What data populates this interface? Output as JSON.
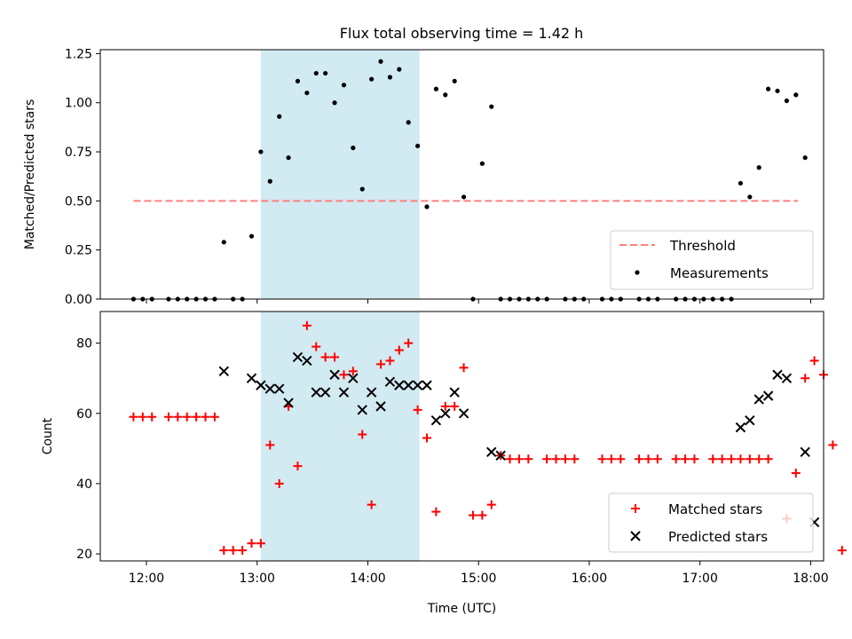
{
  "figure": {
    "title": "Flux total observing time = 1.42 h"
  },
  "chart_data": [
    {
      "type": "scatter",
      "panel": "top",
      "title": "Flux total observing time = 1.42 h",
      "xlabel": "",
      "ylabel": "Matched/Predicted stars",
      "xlim": [
        "11:35",
        "18:07"
      ],
      "ylim": [
        0,
        1.27
      ],
      "yticks": [
        0.0,
        0.25,
        0.5,
        0.75,
        1.0,
        1.25
      ],
      "ytick_labels": [
        "0.00",
        "0.25",
        "0.50",
        "0.75",
        "1.00",
        "1.25"
      ],
      "xticks": [
        "12:00",
        "13:00",
        "14:00",
        "15:00",
        "16:00",
        "17:00",
        "18:00"
      ],
      "grid": false,
      "legend_position": "lower right",
      "shaded_region": {
        "x": [
          "13:02",
          "14:28"
        ],
        "color": "#add8e6"
      },
      "threshold": {
        "name": "Threshold",
        "value": 0.5,
        "x": [
          "11:53",
          "17:53"
        ],
        "color": "#ff7f7f",
        "style": "dashed"
      },
      "series": [
        {
          "name": "Measurements",
          "marker": "dot",
          "color": "#000000",
          "points": [
            [
              "11:53",
              0
            ],
            [
              "11:58",
              0
            ],
            [
              "12:03",
              0
            ],
            [
              "12:12",
              0
            ],
            [
              "12:17",
              0
            ],
            [
              "12:22",
              0
            ],
            [
              "12:27",
              0
            ],
            [
              "12:32",
              0
            ],
            [
              "12:37",
              0
            ],
            [
              "12:42",
              0.29
            ],
            [
              "12:47",
              0
            ],
            [
              "12:52",
              0
            ],
            [
              "12:57",
              0.32
            ],
            [
              "13:02",
              0.75
            ],
            [
              "13:07",
              0.6
            ],
            [
              "13:12",
              0.93
            ],
            [
              "13:17",
              0.72
            ],
            [
              "13:22",
              1.11
            ],
            [
              "13:27",
              1.05
            ],
            [
              "13:32",
              1.15
            ],
            [
              "13:37",
              1.15
            ],
            [
              "13:42",
              1.0
            ],
            [
              "13:47",
              1.09
            ],
            [
              "13:52",
              0.77
            ],
            [
              "13:57",
              0.56
            ],
            [
              "14:02",
              1.12
            ],
            [
              "14:07",
              1.21
            ],
            [
              "14:12",
              1.13
            ],
            [
              "14:17",
              1.17
            ],
            [
              "14:22",
              0.9
            ],
            [
              "14:27",
              0.78
            ],
            [
              "14:32",
              0.47
            ],
            [
              "14:37",
              1.07
            ],
            [
              "14:42",
              1.04
            ],
            [
              "14:47",
              1.11
            ],
            [
              "14:52",
              0.52
            ],
            [
              "14:57",
              0
            ],
            [
              "15:02",
              0.69
            ],
            [
              "15:07",
              0.98
            ],
            [
              "15:12",
              0
            ],
            [
              "15:17",
              0
            ],
            [
              "15:22",
              0
            ],
            [
              "15:27",
              0
            ],
            [
              "15:32",
              0
            ],
            [
              "15:37",
              0
            ],
            [
              "15:47",
              0
            ],
            [
              "15:52",
              0
            ],
            [
              "15:57",
              0
            ],
            [
              "16:07",
              0
            ],
            [
              "16:12",
              0
            ],
            [
              "16:17",
              0
            ],
            [
              "16:27",
              0
            ],
            [
              "16:32",
              0
            ],
            [
              "16:37",
              0
            ],
            [
              "16:47",
              0
            ],
            [
              "16:52",
              0
            ],
            [
              "16:57",
              0
            ],
            [
              "17:02",
              0
            ],
            [
              "17:07",
              0
            ],
            [
              "17:12",
              0
            ],
            [
              "17:17",
              0
            ],
            [
              "17:22",
              0.59
            ],
            [
              "17:27",
              0.52
            ],
            [
              "17:32",
              0.67
            ],
            [
              "17:37",
              1.07
            ],
            [
              "17:42",
              1.06
            ],
            [
              "17:47",
              1.01
            ],
            [
              "17:52",
              1.04
            ],
            [
              "17:57",
              0.72
            ]
          ]
        }
      ]
    },
    {
      "type": "scatter",
      "panel": "bottom",
      "xlabel": "Time (UTC)",
      "ylabel": "Count",
      "xlim": [
        "11:35",
        "18:07"
      ],
      "ylim": [
        18,
        89
      ],
      "yticks": [
        20,
        40,
        60,
        80
      ],
      "ytick_labels": [
        "20",
        "40",
        "60",
        "80"
      ],
      "xticks": [
        "12:00",
        "13:00",
        "14:00",
        "15:00",
        "16:00",
        "17:00",
        "18:00"
      ],
      "xtick_labels": [
        "12:00",
        "13:00",
        "14:00",
        "15:00",
        "16:00",
        "17:00",
        "18:00"
      ],
      "grid": false,
      "legend_position": "lower right",
      "shaded_region": {
        "x": [
          "13:02",
          "14:28"
        ],
        "color": "#add8e6"
      },
      "series": [
        {
          "name": "Matched stars",
          "marker": "plus",
          "color": "#ff0000",
          "points": [
            [
              "11:53",
              59
            ],
            [
              "11:58",
              59
            ],
            [
              "12:03",
              59
            ],
            [
              "12:12",
              59
            ],
            [
              "12:17",
              59
            ],
            [
              "12:22",
              59
            ],
            [
              "12:27",
              59
            ],
            [
              "12:32",
              59
            ],
            [
              "12:37",
              59
            ],
            [
              "12:42",
              21
            ],
            [
              "12:47",
              21
            ],
            [
              "12:52",
              21
            ],
            [
              "12:57",
              23
            ],
            [
              "13:02",
              23
            ],
            [
              "13:07",
              51
            ],
            [
              "13:12",
              40
            ],
            [
              "13:17",
              62
            ],
            [
              "13:22",
              45
            ],
            [
              "13:27",
              85
            ],
            [
              "13:32",
              79
            ],
            [
              "13:37",
              76
            ],
            [
              "13:42",
              76
            ],
            [
              "13:47",
              71
            ],
            [
              "13:52",
              72
            ],
            [
              "13:57",
              54
            ],
            [
              "14:02",
              34
            ],
            [
              "14:07",
              74
            ],
            [
              "14:12",
              75
            ],
            [
              "14:17",
              78
            ],
            [
              "14:22",
              80
            ],
            [
              "14:27",
              61
            ],
            [
              "14:32",
              53
            ],
            [
              "14:37",
              32
            ],
            [
              "14:42",
              62
            ],
            [
              "14:47",
              62
            ],
            [
              "14:52",
              73
            ],
            [
              "14:57",
              31
            ],
            [
              "15:02",
              31
            ],
            [
              "15:07",
              34
            ],
            [
              "15:12",
              48
            ],
            [
              "15:17",
              47
            ],
            [
              "15:22",
              47
            ],
            [
              "15:27",
              47
            ],
            [
              "15:37",
              47
            ],
            [
              "15:42",
              47
            ],
            [
              "15:47",
              47
            ],
            [
              "15:52",
              47
            ],
            [
              "16:07",
              47
            ],
            [
              "16:12",
              47
            ],
            [
              "16:17",
              47
            ],
            [
              "16:27",
              47
            ],
            [
              "16:32",
              47
            ],
            [
              "16:37",
              47
            ],
            [
              "16:47",
              47
            ],
            [
              "16:52",
              47
            ],
            [
              "16:57",
              47
            ],
            [
              "17:07",
              47
            ],
            [
              "17:12",
              47
            ],
            [
              "17:17",
              47
            ],
            [
              "17:22",
              47
            ],
            [
              "17:27",
              47
            ],
            [
              "17:32",
              47
            ],
            [
              "17:37",
              47
            ],
            [
              "17:47",
              30
            ],
            [
              "17:52",
              43
            ],
            [
              "17:57",
              70
            ],
            [
              "18:02",
              75
            ],
            [
              "18:07",
              71
            ],
            [
              "18:12",
              51
            ],
            [
              "18:17",
              21
            ]
          ]
        },
        {
          "name": "Predicted stars",
          "marker": "x",
          "color": "#000000",
          "points": [
            [
              "12:42",
              72
            ],
            [
              "12:57",
              70
            ],
            [
              "13:02",
              68
            ],
            [
              "13:07",
              67
            ],
            [
              "13:12",
              67
            ],
            [
              "13:17",
              63
            ],
            [
              "13:22",
              76
            ],
            [
              "13:27",
              75
            ],
            [
              "13:32",
              66
            ],
            [
              "13:37",
              66
            ],
            [
              "13:42",
              71
            ],
            [
              "13:47",
              66
            ],
            [
              "13:52",
              70
            ],
            [
              "13:57",
              61
            ],
            [
              "14:02",
              66
            ],
            [
              "14:07",
              62
            ],
            [
              "14:12",
              69
            ],
            [
              "14:17",
              68
            ],
            [
              "14:22",
              68
            ],
            [
              "14:27",
              68
            ],
            [
              "14:32",
              68
            ],
            [
              "14:37",
              58
            ],
            [
              "14:42",
              60
            ],
            [
              "14:47",
              66
            ],
            [
              "14:52",
              60
            ],
            [
              "15:07",
              49
            ],
            [
              "15:12",
              48
            ],
            [
              "17:22",
              56
            ],
            [
              "17:27",
              58
            ],
            [
              "17:32",
              64
            ],
            [
              "17:37",
              65
            ],
            [
              "17:42",
              71
            ],
            [
              "17:47",
              70
            ],
            [
              "17:57",
              49
            ],
            [
              "18:02",
              29
            ]
          ]
        }
      ]
    }
  ]
}
